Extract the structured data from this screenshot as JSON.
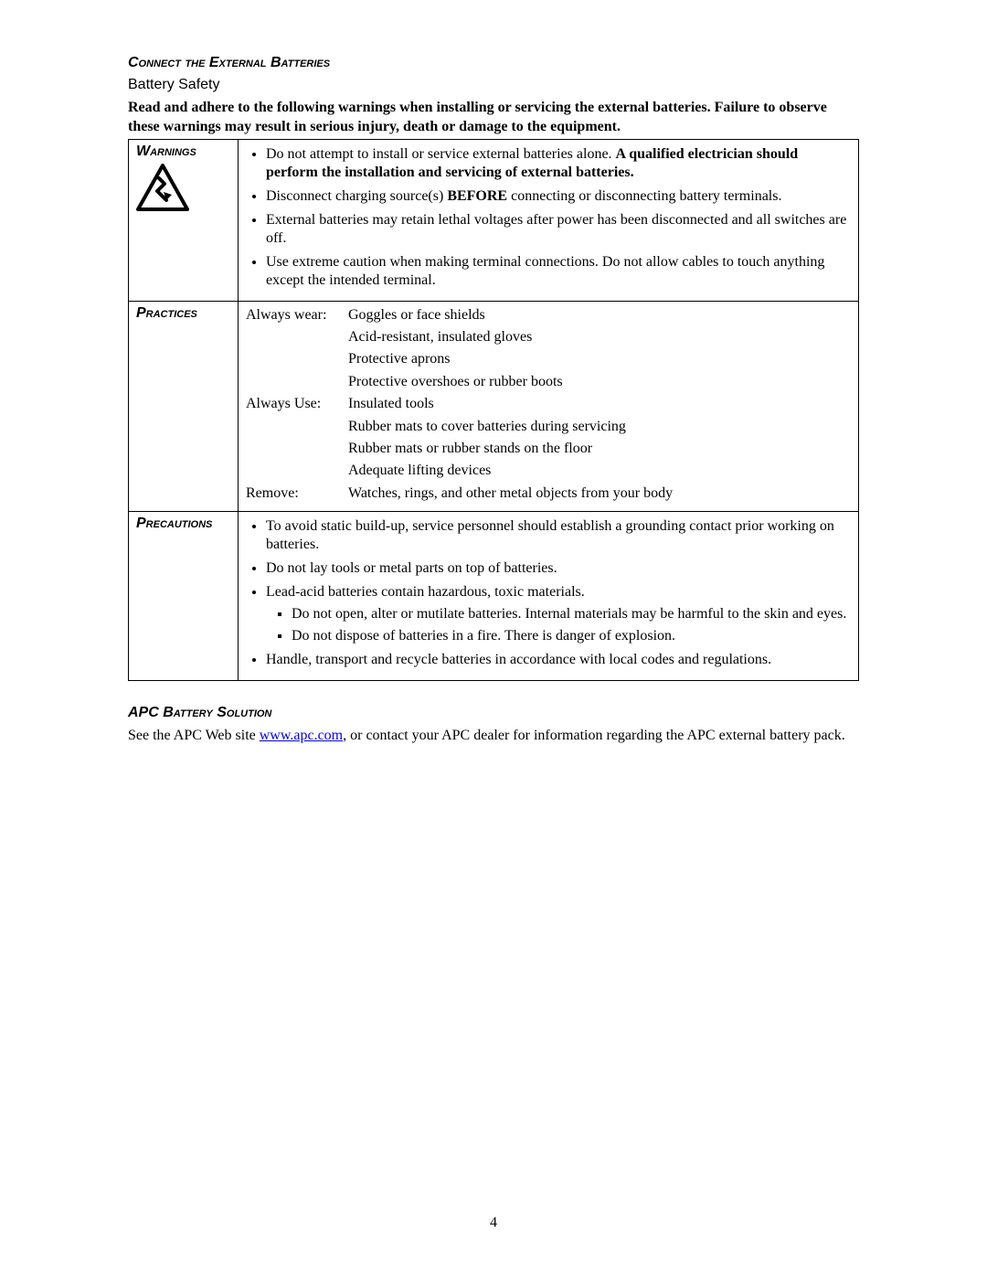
{
  "section_heading": "Connect the External Batteries",
  "subheading": "Battery Safety",
  "intro_text": "Read and adhere to the following warnings when installing or servicing the external batteries. Failure to observe these warnings may result in serious injury, death or damage to the equipment.",
  "table": {
    "warnings": {
      "label": "Warnings",
      "items": [
        {
          "pre": "Do not attempt to install or service external batteries alone. ",
          "bold": "A qualified electrician should perform the installation and servicing of external batteries.",
          "post": ""
        },
        {
          "pre": "Disconnect charging source(s) ",
          "bold": "BEFORE",
          "post": " connecting or disconnecting battery terminals."
        },
        {
          "pre": "External batteries may retain lethal voltages after power has been disconnected and all switches are off.",
          "bold": "",
          "post": ""
        },
        {
          "pre": "Use extreme caution when making terminal connections. Do not allow cables to touch anything except the intended terminal.",
          "bold": "",
          "post": ""
        }
      ]
    },
    "practices": {
      "label": "Practices",
      "rows": [
        {
          "label": "Always wear:",
          "value": "Goggles or face shields"
        },
        {
          "label": "",
          "value": "Acid-resistant, insulated gloves"
        },
        {
          "label": "",
          "value": "Protective aprons"
        },
        {
          "label": "",
          "value": "Protective overshoes or rubber boots"
        },
        {
          "label": "Always Use:",
          "value": "Insulated tools"
        },
        {
          "label": "",
          "value": "Rubber mats to cover batteries during servicing"
        },
        {
          "label": "",
          "value": "Rubber mats or rubber stands on the floor"
        },
        {
          "label": "",
          "value": "Adequate lifting devices"
        },
        {
          "label": "Remove:",
          "value": "Watches, rings, and other metal objects from your body"
        }
      ]
    },
    "precautions": {
      "label": "Precautions",
      "items": [
        {
          "text": "To avoid static build-up, service personnel should establish a grounding contact prior working on batteries.",
          "sub": []
        },
        {
          "text": "Do not lay tools or metal parts on top of batteries.",
          "sub": []
        },
        {
          "text": "Lead-acid batteries contain hazardous, toxic materials.",
          "sub": [
            "Do not open, alter or mutilate batteries. Internal materials may be harmful to the skin and eyes.",
            "Do not dispose of batteries in a fire. There is danger of explosion."
          ]
        },
        {
          "text": "Handle, transport and recycle batteries in accordance with local codes and regulations.",
          "sub": []
        }
      ]
    }
  },
  "solution_heading": "APC Battery Solution",
  "solution_text_pre": "See the APC Web site ",
  "solution_link": "www.apc.com",
  "solution_text_post": ", or contact your APC dealer for information regarding the APC external battery pack.",
  "page_number": "4",
  "colors": {
    "text": "#000000",
    "link": "#0000ee",
    "background": "#ffffff",
    "border": "#000000"
  }
}
